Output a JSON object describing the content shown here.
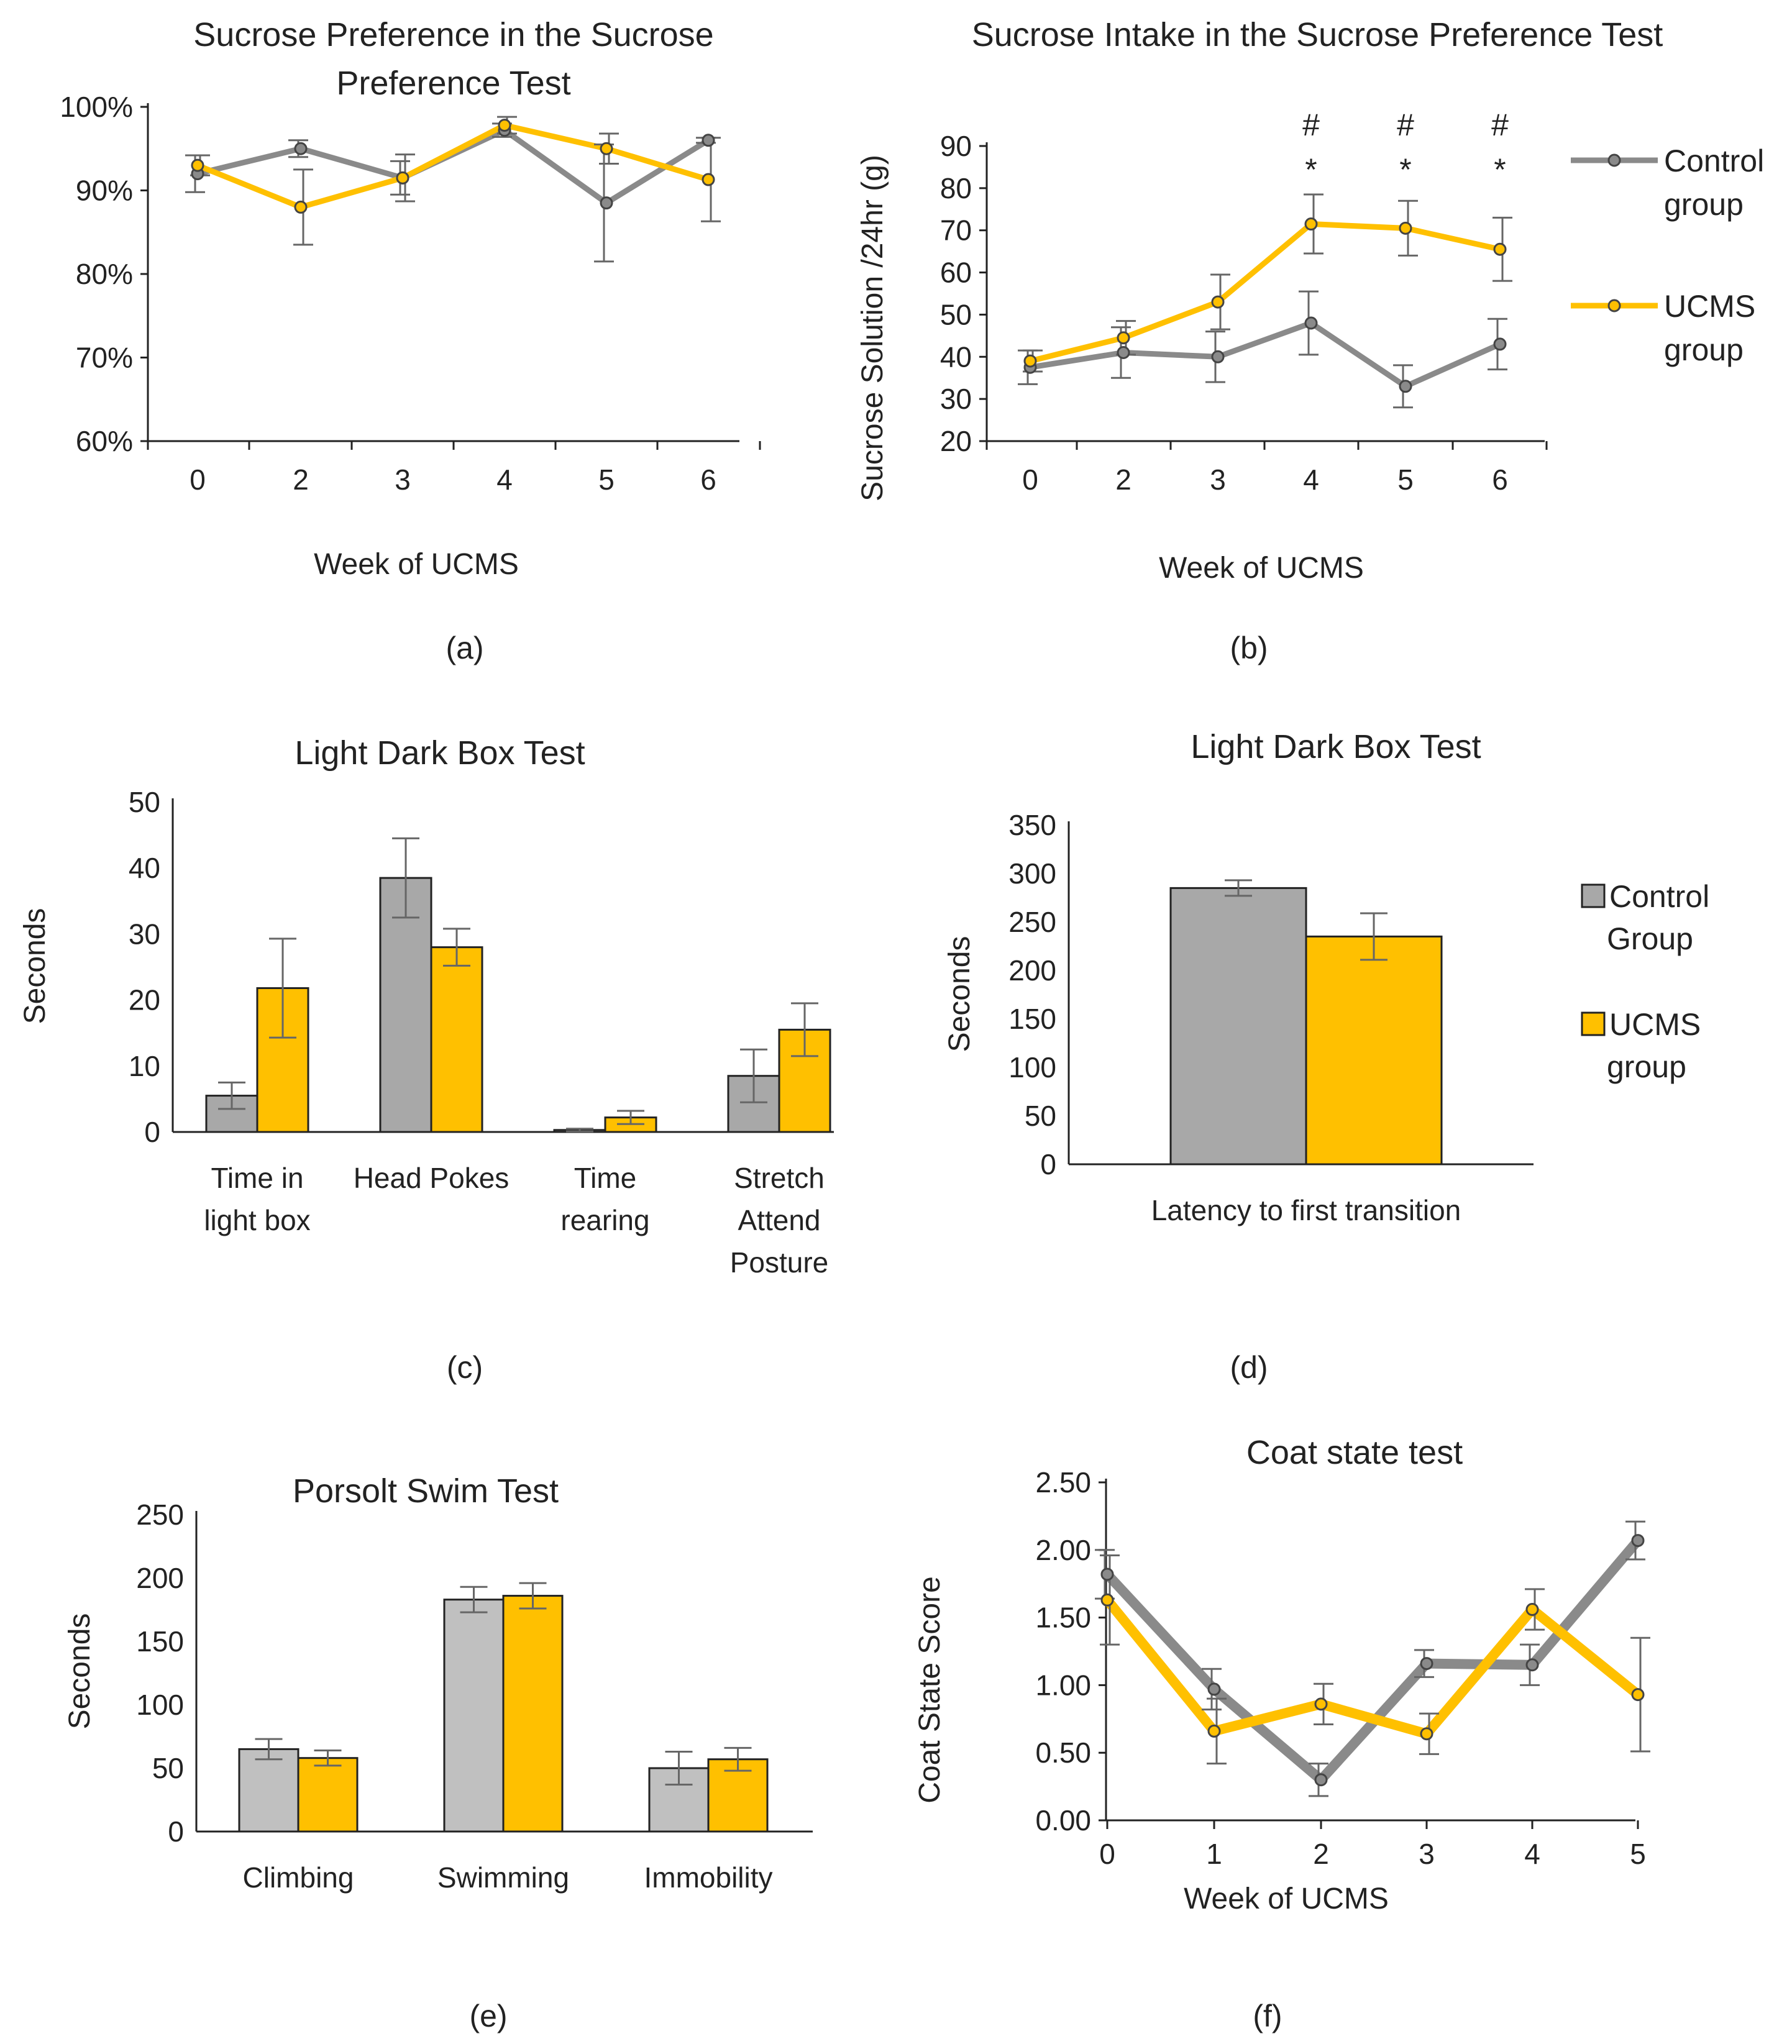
{
  "colors": {
    "control": "#8a8a8a",
    "control_bar": "#a8a8a8",
    "control_bar_light": "#c0c0c0",
    "ucms": "#ffc000",
    "axis": "#222222",
    "err": "#666666"
  },
  "chart_data": [
    {
      "id": "a",
      "panel_label": "(a)",
      "type": "line",
      "title_lines": [
        "Sucrose Preference in the Sucrose",
        "Preference Test"
      ],
      "xlabel": "Week of UCMS",
      "ylabel": "",
      "x": [
        "0",
        "2",
        "3",
        "4",
        "5",
        "6"
      ],
      "ylim": [
        0.6,
        1.0
      ],
      "yticks": [
        0.6,
        0.7,
        0.8,
        0.9,
        1.0
      ],
      "yticklabels": [
        "60%",
        "70%",
        "80%",
        "90%",
        "100%"
      ],
      "series": [
        {
          "name": "Control group",
          "values": [
            0.92,
            0.95,
            0.915,
            0.972,
            0.885,
            0.96
          ],
          "errors": [
            0.022,
            0.01,
            0.02,
            0.008,
            0.07,
            0.003
          ]
        },
        {
          "name": "UCMS group",
          "values": [
            0.93,
            0.88,
            0.915,
            0.978,
            0.95,
            0.913
          ],
          "errors": [
            0.012,
            0.045,
            0.028,
            0.01,
            0.018,
            0.05
          ]
        }
      ]
    },
    {
      "id": "b",
      "panel_label": "(b)",
      "type": "line",
      "title_lines": [
        "Sucrose Intake in the Sucrose Preference Test"
      ],
      "xlabel": "Week of UCMS",
      "ylabel": "Sucrose Solution /24hr (g)",
      "x": [
        "0",
        "2",
        "3",
        "4",
        "5",
        "6"
      ],
      "ylim": [
        20,
        90
      ],
      "yticks": [
        20,
        30,
        40,
        50,
        60,
        70,
        80,
        90
      ],
      "yticklabels": [
        "20",
        "30",
        "40",
        "50",
        "60",
        "70",
        "80",
        "90"
      ],
      "series": [
        {
          "name": "Control group",
          "values": [
            37.5,
            41,
            40,
            48,
            33,
            43
          ],
          "errors": [
            4,
            6,
            6,
            7.5,
            5,
            6
          ]
        },
        {
          "name": "UCMS group",
          "values": [
            39,
            44.5,
            53,
            71.5,
            70.5,
            65.5
          ],
          "errors": [
            2.5,
            4,
            6.5,
            7,
            6.5,
            7.5
          ]
        }
      ],
      "annotations": [
        {
          "x": "4",
          "hash": "#",
          "star": "*"
        },
        {
          "x": "5",
          "hash": "#",
          "star": "*"
        },
        {
          "x": "6",
          "hash": "#",
          "star": "*"
        }
      ],
      "legend": [
        {
          "series": 0,
          "lines": [
            "Control",
            "group"
          ]
        },
        {
          "series": 1,
          "lines": [
            "UCMS",
            "group"
          ]
        }
      ]
    },
    {
      "id": "c",
      "panel_label": "(c)",
      "type": "bar",
      "title_lines": [
        "Light Dark Box Test"
      ],
      "xlabel": "",
      "ylabel": "Seconds",
      "categories": [
        [
          "Time in",
          "light box"
        ],
        [
          "Head Pokes"
        ],
        [
          "Time",
          "rearing"
        ],
        [
          "Stretch",
          "Attend",
          "Posture"
        ]
      ],
      "ylim": [
        0,
        50
      ],
      "yticks": [
        0,
        10,
        20,
        30,
        40,
        50
      ],
      "yticklabels": [
        "0",
        "10",
        "20",
        "30",
        "40",
        "50"
      ],
      "series": [
        {
          "name": "Control Group",
          "values": [
            5.5,
            38.5,
            0.3,
            8.5
          ],
          "errors": [
            2,
            6,
            0.2,
            4
          ]
        },
        {
          "name": "UCMS group",
          "values": [
            21.8,
            28,
            2.2,
            15.5
          ],
          "errors": [
            7.5,
            2.8,
            1,
            4
          ]
        }
      ]
    },
    {
      "id": "d",
      "panel_label": "(d)",
      "type": "bar",
      "title_lines": [
        "Light Dark Box Test"
      ],
      "xlabel": "",
      "ylabel": "Seconds",
      "categories": [
        [
          "Latency to first transition"
        ]
      ],
      "ylim": [
        0,
        350
      ],
      "yticks": [
        0,
        50,
        100,
        150,
        200,
        250,
        300,
        350
      ],
      "yticklabels": [
        "0",
        "50",
        "100",
        "150",
        "200",
        "250",
        "300",
        "350"
      ],
      "series": [
        {
          "name": "Control Group",
          "values": [
            285
          ],
          "errors": [
            8
          ]
        },
        {
          "name": "UCMS group",
          "values": [
            235
          ],
          "errors": [
            24
          ]
        }
      ],
      "legend": [
        {
          "series": 0,
          "lines": [
            "Control",
            "Group"
          ]
        },
        {
          "series": 1,
          "lines": [
            "UCMS",
            "group"
          ]
        }
      ]
    },
    {
      "id": "e",
      "panel_label": "(e)",
      "type": "bar",
      "title_lines": [
        "Porsolt Swim Test"
      ],
      "xlabel": "",
      "ylabel": "Seconds",
      "categories": [
        [
          "Climbing"
        ],
        [
          "Swimming"
        ],
        [
          "Immobility"
        ]
      ],
      "ylim": [
        0,
        250
      ],
      "yticks": [
        0,
        50,
        100,
        150,
        200,
        250
      ],
      "yticklabels": [
        "0",
        "50",
        "100",
        "150",
        "200",
        "250"
      ],
      "series": [
        {
          "name": "Control Group",
          "values": [
            65,
            183,
            50
          ],
          "errors": [
            8,
            10,
            13
          ]
        },
        {
          "name": "UCMS group",
          "values": [
            58,
            186,
            57
          ],
          "errors": [
            6,
            10,
            9
          ]
        }
      ]
    },
    {
      "id": "f",
      "panel_label": "(f)",
      "type": "line",
      "title_lines": [
        "Coat state test"
      ],
      "xlabel": "Week of UCMS",
      "ylabel": "Coat State Score",
      "x": [
        "0",
        "1",
        "2",
        "3",
        "4",
        "5"
      ],
      "ylim": [
        0,
        2.5
      ],
      "yticks": [
        0,
        0.5,
        1,
        1.5,
        2,
        2.5
      ],
      "yticklabels": [
        "0.00",
        "0.50",
        "1.00",
        "1.50",
        "2.00",
        "2.50"
      ],
      "series": [
        {
          "name": "Control group",
          "values": [
            1.82,
            0.97,
            0.3,
            1.16,
            1.15,
            2.07
          ],
          "errors": [
            0.18,
            0.15,
            0.12,
            0.1,
            0.15,
            0.14
          ]
        },
        {
          "name": "UCMS group",
          "values": [
            1.63,
            0.66,
            0.86,
            0.64,
            1.56,
            0.93
          ],
          "errors": [
            0.33,
            0.24,
            0.15,
            0.15,
            0.15,
            0.42
          ]
        }
      ]
    }
  ]
}
